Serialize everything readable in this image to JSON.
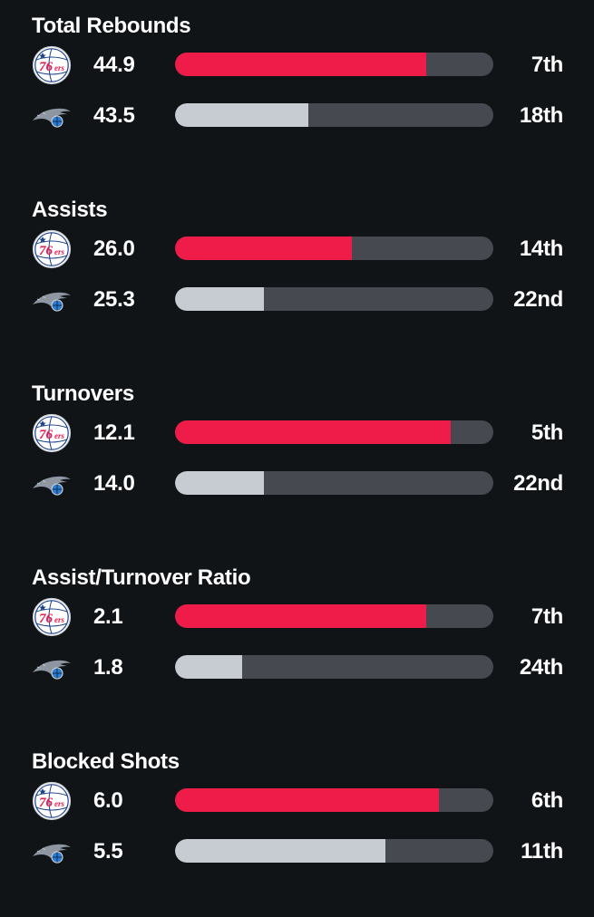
{
  "teams": {
    "home": {
      "logo_icon": "sixers-76ers-logo-icon",
      "color": "#ef1b48"
    },
    "away": {
      "logo_icon": "orlando-magic-logo-icon",
      "color": "#c6ccd2"
    }
  },
  "stats": [
    {
      "title": "Total Rebounds",
      "home": {
        "value": "44.9",
        "rank": "7th",
        "bar_fraction": 0.79
      },
      "away": {
        "value": "43.5",
        "rank": "18th",
        "bar_fraction": 0.42
      }
    },
    {
      "title": "Assists",
      "home": {
        "value": "26.0",
        "rank": "14th",
        "bar_fraction": 0.555
      },
      "away": {
        "value": "25.3",
        "rank": "22nd",
        "bar_fraction": 0.28
      }
    },
    {
      "title": "Turnovers",
      "home": {
        "value": "12.1",
        "rank": "5th",
        "bar_fraction": 0.865
      },
      "away": {
        "value": "14.0",
        "rank": "22nd",
        "bar_fraction": 0.28
      }
    },
    {
      "title": "Assist/Turnover Ratio",
      "home": {
        "value": "2.1",
        "rank": "7th",
        "bar_fraction": 0.79
      },
      "away": {
        "value": "1.8",
        "rank": "24th",
        "bar_fraction": 0.21
      }
    },
    {
      "title": "Blocked Shots",
      "home": {
        "value": "6.0",
        "rank": "6th",
        "bar_fraction": 0.83
      },
      "away": {
        "value": "5.5",
        "rank": "11th",
        "bar_fraction": 0.66
      }
    }
  ]
}
